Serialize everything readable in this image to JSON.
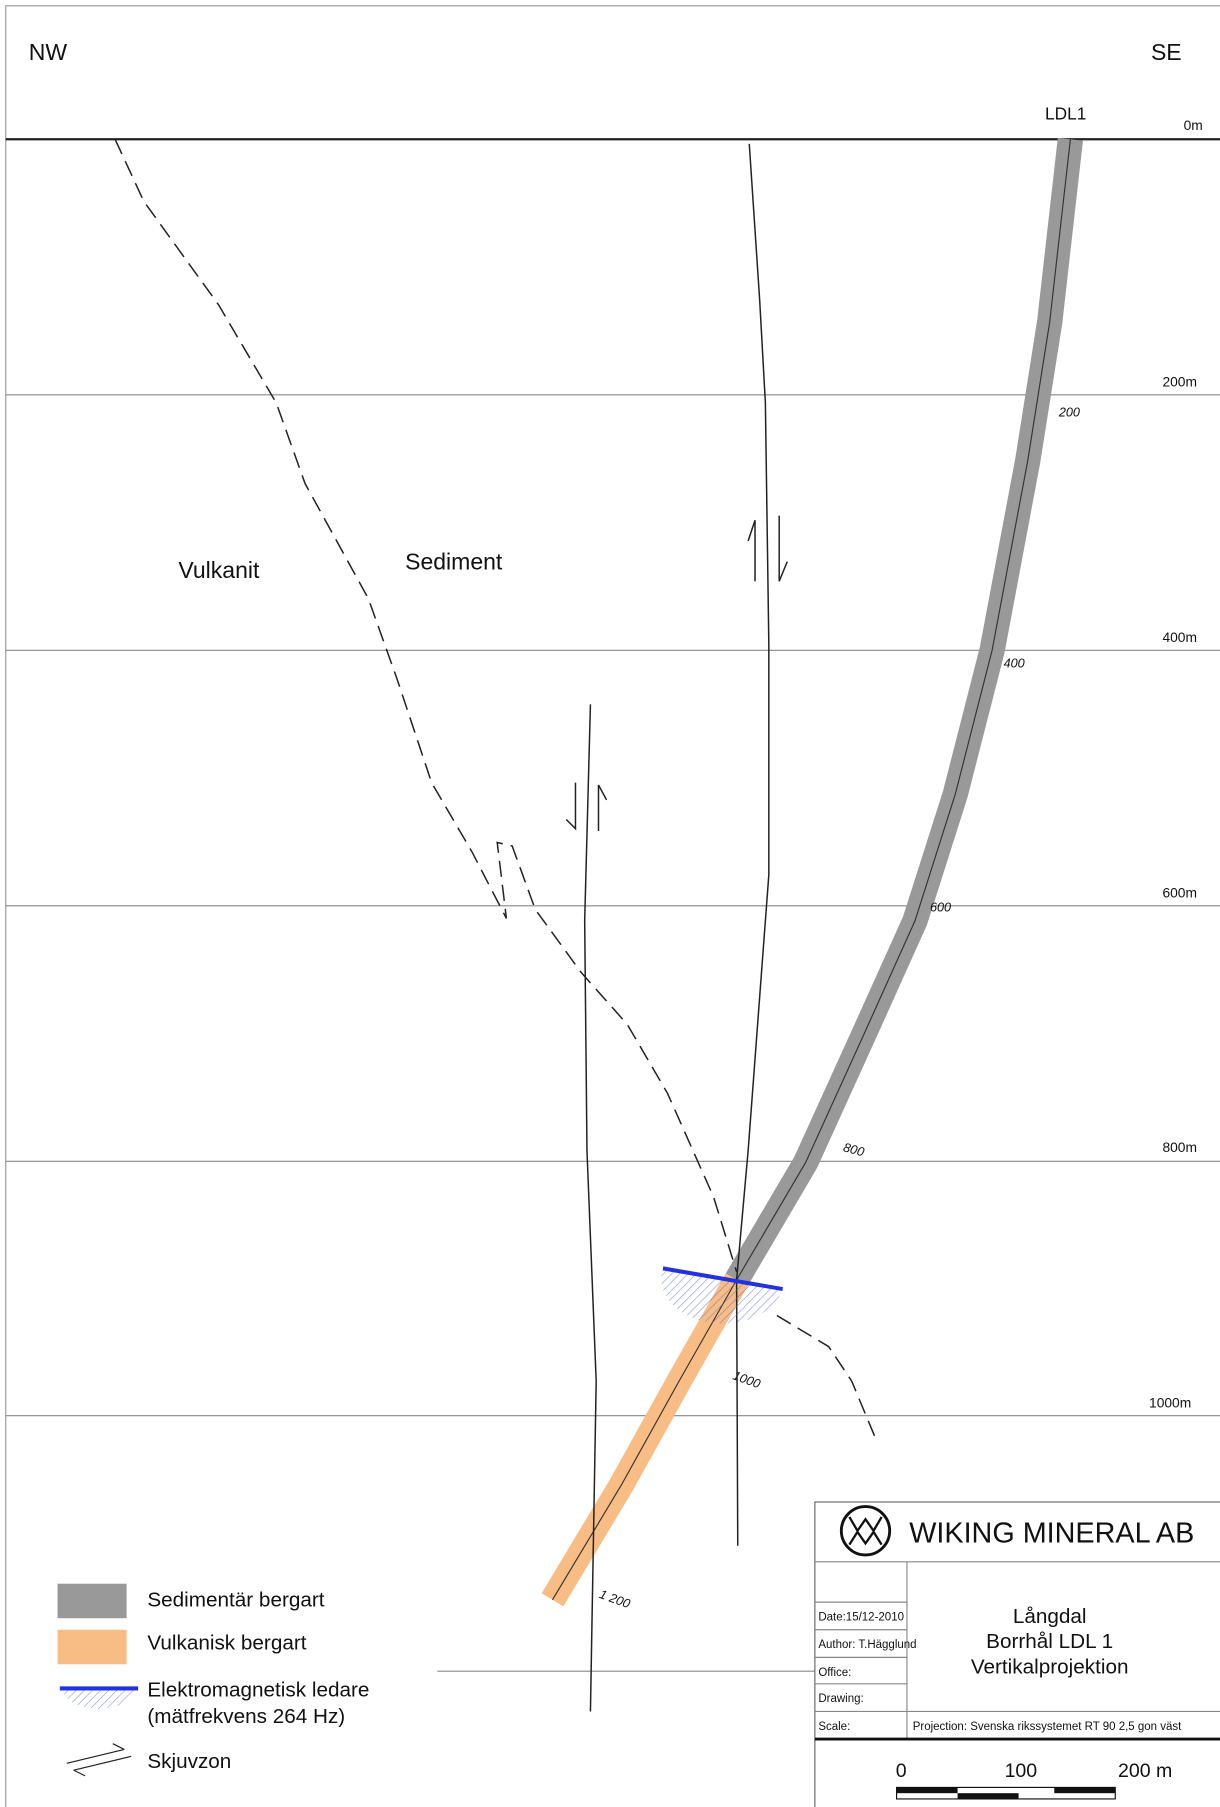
{
  "header": {
    "left": "NW",
    "right": "SE"
  },
  "borehole": {
    "name": "LDL1",
    "depth_marks": [
      "200",
      "400",
      "600",
      "800",
      "1000",
      "1 200"
    ]
  },
  "depth_axis": [
    "0m",
    "200m",
    "400m",
    "600m",
    "800m",
    "1000m"
  ],
  "units": [
    "Vulkanit",
    "Sediment"
  ],
  "legend": [
    "Sedimentär bergart",
    "Vulkanisk bergart",
    "Elektromagnetisk ledare",
    "(mätfrekvens 264 Hz)",
    "Skjuvzon"
  ],
  "title_block": {
    "company": "WIKING MINERAL AB",
    "date": "Date:15/12-2010",
    "author": "Author: T.Hägglund",
    "office": "Office:",
    "drawing": "Drawing:",
    "scale": "Scale:",
    "title": [
      "Långdal",
      "Borrhål LDL 1",
      "Vertikalprojektion"
    ],
    "projection": "Projection: Svenska rikssystemet RT 90 2,5 gon väst",
    "scale_bar": [
      "0",
      "100",
      "200 m"
    ]
  }
}
